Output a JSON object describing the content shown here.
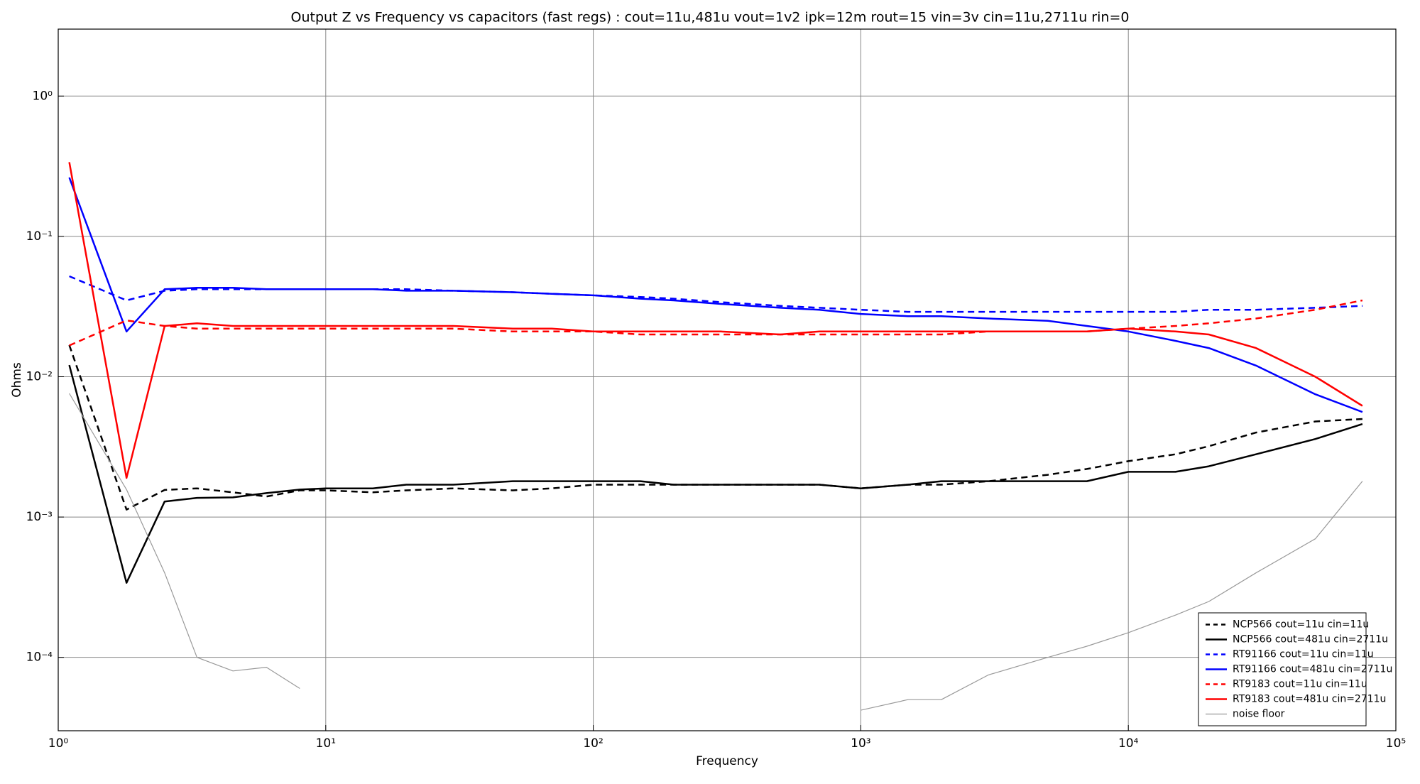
{
  "chart_data": {
    "type": "line",
    "title": "Output Z vs Frequency vs capacitors (fast regs) : cout=11u,481u vout=1v2 ipk=12m rout=15 vin=3v cin=11u,2711u rin=0",
    "xlabel": "Frequency",
    "ylabel": "Ohms",
    "xlog": true,
    "ylog": true,
    "grid": true,
    "legend": "lower right",
    "xlim": [
      1,
      100000
    ],
    "ylim": [
      3e-05,
      3
    ],
    "xticks": [
      {
        "value": 1,
        "label": "10⁰"
      },
      {
        "value": 10,
        "label": "10¹"
      },
      {
        "value": 100,
        "label": "10²"
      },
      {
        "value": 1000,
        "label": "10³"
      },
      {
        "value": 10000,
        "label": "10⁴"
      },
      {
        "value": 100000,
        "label": "10⁵"
      }
    ],
    "yticks": [
      {
        "value": 0.0001,
        "label": "10⁻⁴"
      },
      {
        "value": 0.001,
        "label": "10⁻³"
      },
      {
        "value": 0.01,
        "label": "10⁻²"
      },
      {
        "value": 0.1,
        "label": "10⁻¹"
      },
      {
        "value": 1,
        "label": "10⁰"
      }
    ],
    "x": [
      1.1,
      1.8,
      2.5,
      3.3,
      4.5,
      6,
      8,
      10,
      15,
      20,
      30,
      50,
      70,
      100,
      150,
      200,
      300,
      500,
      700,
      1000,
      1500,
      2000,
      3000,
      5000,
      7000,
      10000,
      15000,
      20000,
      30000,
      50000,
      75000
    ],
    "series": [
      {
        "name": "NCP566 cout=11u cin=11u",
        "color": "#000000",
        "linestyle": "dashed",
        "linewidth": 2.5,
        "values": [
          0.0168,
          0.00113,
          0.00156,
          0.0016,
          0.0015,
          0.0014,
          0.00155,
          0.00155,
          0.0015,
          0.00155,
          0.0016,
          0.00155,
          0.0016,
          0.0017,
          0.0017,
          0.0017,
          0.0017,
          0.0017,
          0.0017,
          0.0016,
          0.0017,
          0.0017,
          0.0018,
          0.002,
          0.0022,
          0.0025,
          0.0028,
          0.0032,
          0.004,
          0.0048,
          0.005
        ]
      },
      {
        "name": "NCP566 cout=481u cin=2711u",
        "color": "#000000",
        "linestyle": "solid",
        "linewidth": 2.5,
        "values": [
          0.0121,
          0.00034,
          0.00129,
          0.00137,
          0.00138,
          0.00148,
          0.00157,
          0.0016,
          0.0016,
          0.0017,
          0.0017,
          0.0018,
          0.0018,
          0.0018,
          0.0018,
          0.0017,
          0.0017,
          0.0017,
          0.0017,
          0.0016,
          0.0017,
          0.0018,
          0.0018,
          0.0018,
          0.0018,
          0.0021,
          0.0021,
          0.0023,
          0.0028,
          0.0036,
          0.0046
        ]
      },
      {
        "name": "RT91166 cout=11u cin=11u",
        "color": "#0000ff",
        "linestyle": "dashed",
        "linewidth": 2.5,
        "values": [
          0.052,
          0.035,
          0.041,
          0.042,
          0.042,
          0.042,
          0.042,
          0.042,
          0.042,
          0.042,
          0.041,
          0.04,
          0.039,
          0.038,
          0.037,
          0.036,
          0.034,
          0.032,
          0.031,
          0.03,
          0.029,
          0.029,
          0.029,
          0.029,
          0.029,
          0.029,
          0.029,
          0.03,
          0.03,
          0.031,
          0.032
        ]
      },
      {
        "name": "RT91166 cout=481u cin=2711u",
        "color": "#0000ff",
        "linestyle": "solid",
        "linewidth": 2.5,
        "values": [
          0.263,
          0.021,
          0.042,
          0.043,
          0.043,
          0.042,
          0.042,
          0.042,
          0.042,
          0.041,
          0.041,
          0.04,
          0.039,
          0.038,
          0.036,
          0.035,
          0.033,
          0.031,
          0.03,
          0.028,
          0.027,
          0.027,
          0.026,
          0.025,
          0.023,
          0.021,
          0.018,
          0.016,
          0.012,
          0.0075,
          0.0056
        ]
      },
      {
        "name": "RT9183 cout=11u cin=11u",
        "color": "#ff0000",
        "linestyle": "dashed",
        "linewidth": 2.5,
        "values": [
          0.0167,
          0.0252,
          0.023,
          0.022,
          0.022,
          0.022,
          0.022,
          0.022,
          0.022,
          0.022,
          0.022,
          0.021,
          0.021,
          0.021,
          0.02,
          0.02,
          0.02,
          0.02,
          0.02,
          0.02,
          0.02,
          0.02,
          0.021,
          0.021,
          0.021,
          0.022,
          0.023,
          0.024,
          0.026,
          0.03,
          0.035
        ]
      },
      {
        "name": "RT9183 cout=481u cin=2711u",
        "color": "#ff0000",
        "linestyle": "solid",
        "linewidth": 2.5,
        "values": [
          0.338,
          0.0019,
          0.023,
          0.024,
          0.023,
          0.023,
          0.023,
          0.023,
          0.023,
          0.023,
          0.023,
          0.022,
          0.022,
          0.021,
          0.021,
          0.021,
          0.021,
          0.02,
          0.021,
          0.021,
          0.021,
          0.021,
          0.021,
          0.021,
          0.021,
          0.022,
          0.021,
          0.02,
          0.016,
          0.01,
          0.0062
        ]
      },
      {
        "name": "noise floor",
        "color": "#999999",
        "linestyle": "solid",
        "linewidth": 1.2,
        "values": [
          0.0076,
          0.00157,
          0.0004,
          0.0001,
          8e-05,
          8.5e-05,
          6e-05,
          null,
          null,
          null,
          null,
          null,
          null,
          null,
          null,
          null,
          null,
          null,
          null,
          4.2e-05,
          5e-05,
          5e-05,
          7.5e-05,
          0.0001,
          0.00012,
          0.00015,
          0.0002,
          0.00025,
          0.0004,
          0.0007,
          0.0018
        ]
      }
    ]
  }
}
